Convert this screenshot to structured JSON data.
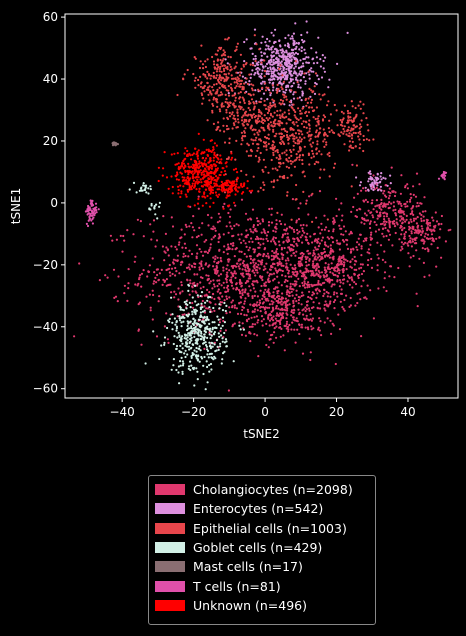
{
  "chart_data": {
    "type": "scatter",
    "xlabel": "tSNE2",
    "ylabel": "tSNE1",
    "xlim": [
      -56,
      54
    ],
    "ylim": [
      -63,
      61
    ],
    "xticks": [
      -40,
      -20,
      0,
      20,
      40
    ],
    "yticks": [
      -60,
      -40,
      -20,
      0,
      20,
      40,
      60
    ],
    "grid": false,
    "legend_placement": "below plot",
    "background": "#000000",
    "series": [
      {
        "name": "Cholangiocytes (n=2098)",
        "color": "#e0386e",
        "count": 2098,
        "clusters": [
          {
            "cx": -2,
            "cy": -22,
            "sx": 16,
            "sy": 10,
            "w": 0.62
          },
          {
            "cx": 18,
            "cy": -20,
            "sx": 6,
            "sy": 6,
            "w": 0.12
          },
          {
            "cx": 35,
            "cy": -3,
            "sx": 5,
            "sy": 5,
            "w": 0.12
          },
          {
            "cx": 44,
            "cy": -10,
            "sx": 3,
            "sy": 4,
            "w": 0.06
          },
          {
            "cx": 5,
            "cy": -36,
            "sx": 6,
            "sy": 4,
            "w": 0.08
          }
        ]
      },
      {
        "name": "Enterocytes (n=542)",
        "color": "#dd8fde",
        "count": 542,
        "clusters": [
          {
            "cx": 5,
            "cy": 44,
            "sx": 5,
            "sy": 5,
            "w": 0.9
          },
          {
            "cx": 31,
            "cy": 7,
            "sx": 2,
            "sy": 1.5,
            "w": 0.1
          }
        ]
      },
      {
        "name": "Epithelial cells (n=1003)",
        "color": "#e8464c",
        "count": 1003,
        "clusters": [
          {
            "cx": -12,
            "cy": 40,
            "sx": 5,
            "sy": 5,
            "w": 0.25
          },
          {
            "cx": 6,
            "cy": 22,
            "sx": 7,
            "sy": 8,
            "w": 0.5
          },
          {
            "cx": 24,
            "cy": 25,
            "sx": 2.5,
            "sy": 4,
            "w": 0.1
          },
          {
            "cx": -5,
            "cy": 28,
            "sx": 4,
            "sy": 5,
            "w": 0.15
          }
        ]
      },
      {
        "name": "Goblet cells (n=429)",
        "color": "#d2f0e6",
        "count": 429,
        "clusters": [
          {
            "cx": -19,
            "cy": -43,
            "sx": 4,
            "sy": 6,
            "w": 0.92
          },
          {
            "cx": -34,
            "cy": 5,
            "sx": 1.5,
            "sy": 1,
            "w": 0.05
          },
          {
            "cx": -31,
            "cy": -2,
            "sx": 1,
            "sy": 3,
            "w": 0.03
          }
        ]
      },
      {
        "name": "Mast cells (n=17)",
        "color": "#8a6e72",
        "count": 17,
        "clusters": [
          {
            "cx": -42,
            "cy": 19,
            "sx": 0.4,
            "sy": 0.4,
            "w": 1
          }
        ]
      },
      {
        "name": "T cells (n=81)",
        "color": "#e050aa",
        "count": 81,
        "clusters": [
          {
            "cx": -48.5,
            "cy": -3,
            "sx": 0.8,
            "sy": 2,
            "w": 0.75
          },
          {
            "cx": 50,
            "cy": 9,
            "sx": 0.5,
            "sy": 0.6,
            "w": 0.25
          }
        ]
      },
      {
        "name": "Unknown (n=496)",
        "color": "#ff0000",
        "count": 496,
        "clusters": [
          {
            "cx": -18,
            "cy": 10,
            "sx": 4,
            "sy": 4,
            "w": 0.8
          },
          {
            "cx": -10,
            "cy": 5,
            "sx": 3,
            "sy": 1.5,
            "w": 0.2
          }
        ]
      }
    ]
  }
}
